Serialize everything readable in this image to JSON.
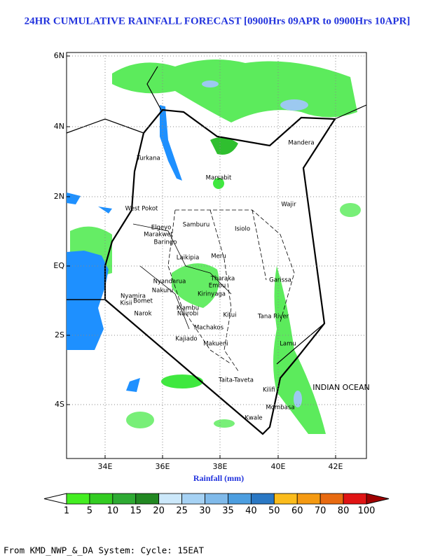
{
  "title": "24HR CUMULATIVE RAINFALL FORECAST [0900Hrs 09APR to 0900Hrs 10APR]",
  "lat_labels": [
    "6N",
    "4N",
    "2N",
    "EQ",
    "2S",
    "4S"
  ],
  "lon_labels": [
    "34E",
    "36E",
    "38E",
    "40E",
    "42E"
  ],
  "places": [
    "Turkana",
    "Marsabit",
    "Mandera",
    "Wajir",
    "West Pokot",
    "Samburu",
    "Isiolo",
    "Elgeyo",
    "Marakwet",
    "Baringo",
    "Laikipia",
    "Meru",
    "Tharaka",
    "Embu",
    "Kirinyaga",
    "Garissa",
    "Tana River",
    "Kitui",
    "Kiambu",
    "Nairobi",
    "Machakos",
    "Kajiado",
    "Makueni",
    "Narok",
    "Bomet",
    "Nakuru",
    "Nyandarua",
    "Kisii",
    "Nyamira",
    "Lamu",
    "Taita-Taveta",
    "Kilifi",
    "Mombasa",
    "Kwale",
    "INDIAN OCEAN"
  ],
  "legend_title": "Rainfall (mm)",
  "colorbar": {
    "levels": [
      1,
      5,
      10,
      15,
      20,
      25,
      30,
      35,
      40,
      50,
      60,
      70,
      80,
      100
    ],
    "colors": [
      "#44ee22",
      "#33cc22",
      "#2eaa33",
      "#228822",
      "#cce8fa",
      "#a6d2f4",
      "#80baea",
      "#4c9ee0",
      "#2a78c4",
      "#fbbc1c",
      "#f59a12",
      "#e86a10",
      "#e01414"
    ],
    "under_color": "#ffffff",
    "over_color": "#a00000"
  },
  "footer": "From KMD_NWP_&_DA System: Cycle: 15EAT"
}
